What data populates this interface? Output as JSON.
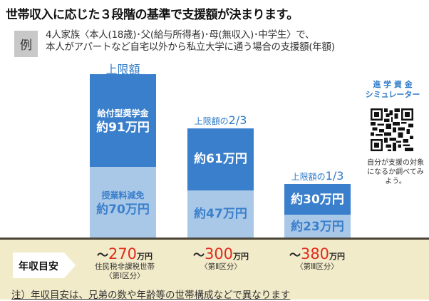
{
  "title": "世帯収入に応じた３段階の基準で支援額が決まります。",
  "example": {
    "badge": "例",
    "line1": "4人家族〈本人(18歳)･父(給与所得者)･母(無収入)･中学生〉で、",
    "line2": "本人がアパートなど自宅以外から私立大学に通う場合の支援額(年額)"
  },
  "chart_data": {
    "type": "bar",
    "stacked": true,
    "unit": "万円",
    "categories": [
      "第Ⅰ区分",
      "第Ⅱ区分",
      "第Ⅲ区分"
    ],
    "captions": [
      {
        "text": "上限額",
        "frac": ""
      },
      {
        "text": "上限額の",
        "frac": "2/3"
      },
      {
        "text": "上限額の",
        "frac": "1/3"
      }
    ],
    "series": [
      {
        "name": "授業料減免",
        "values": [
          70,
          47,
          23
        ],
        "color": "#a9c8e8",
        "labels": [
          "約70万円",
          "約47万円",
          "約23万円"
        ]
      },
      {
        "name": "給付型奨学金",
        "values": [
          91,
          61,
          30
        ],
        "color": "#3a7fcb",
        "labels": [
          "約91万円",
          "約61万円",
          "約30万円"
        ]
      }
    ]
  },
  "simulator": {
    "title1": "進 学 資 金",
    "title2": "シミュレーター",
    "note": "自分が支援の対象になるか調べてみよう。"
  },
  "income": {
    "label": "年収目安",
    "items": [
      {
        "prefix": "～",
        "num": "270",
        "unit": "万円",
        "sub1": "住民税非課税世帯",
        "sub2": "〈第Ⅰ区分〉"
      },
      {
        "prefix": "～",
        "num": "300",
        "unit": "万円",
        "sub1": "〈第Ⅱ区分〉",
        "sub2": ""
      },
      {
        "prefix": "～",
        "num": "380",
        "unit": "万円",
        "sub1": "〈第Ⅲ区分〉",
        "sub2": ""
      }
    ]
  },
  "note": "注）年収目安は、兄弟の数や年齢等の世帯構成などで異なります"
}
